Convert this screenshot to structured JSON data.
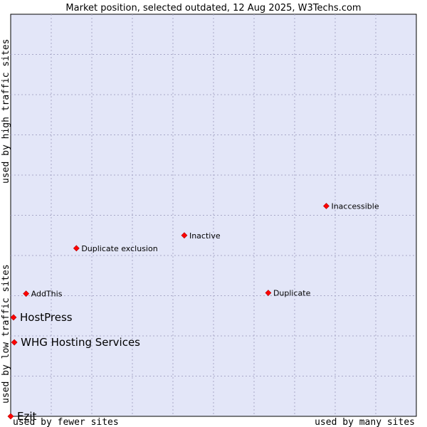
{
  "chart_data": {
    "type": "scatter",
    "title": "Market position, selected outdated, 12 Aug 2025, W3Techs.com",
    "xlabel_left": "used by fewer sites",
    "xlabel_right": "used by many sites",
    "ylabel_bottom": "used by low traffic sites",
    "ylabel_top": "used by high traffic sites",
    "xlim": [
      0,
      100
    ],
    "ylim": [
      0,
      100
    ],
    "grid": true,
    "colors": {
      "plot_bg": "#e3e6f8",
      "grid": "#a8a8c8",
      "point": "#ff0000"
    },
    "points": [
      {
        "name": "Inaccessible",
        "x": 77.8,
        "y": 52.3,
        "highlight": false
      },
      {
        "name": "Inactive",
        "x": 42.8,
        "y": 45.0,
        "highlight": false
      },
      {
        "name": "Duplicate exclusion",
        "x": 16.2,
        "y": 41.8,
        "highlight": false
      },
      {
        "name": "AddThis",
        "x": 3.8,
        "y": 30.5,
        "highlight": false
      },
      {
        "name": "Duplicate",
        "x": 63.5,
        "y": 30.7,
        "highlight": false
      },
      {
        "name": "HostPress",
        "x": 0.7,
        "y": 24.6,
        "highlight": true
      },
      {
        "name": "WHG Hosting Services",
        "x": 0.9,
        "y": 18.4,
        "highlight": true
      },
      {
        "name": "Ezit",
        "x": 0.0,
        "y": 0.0,
        "highlight": true
      }
    ]
  }
}
